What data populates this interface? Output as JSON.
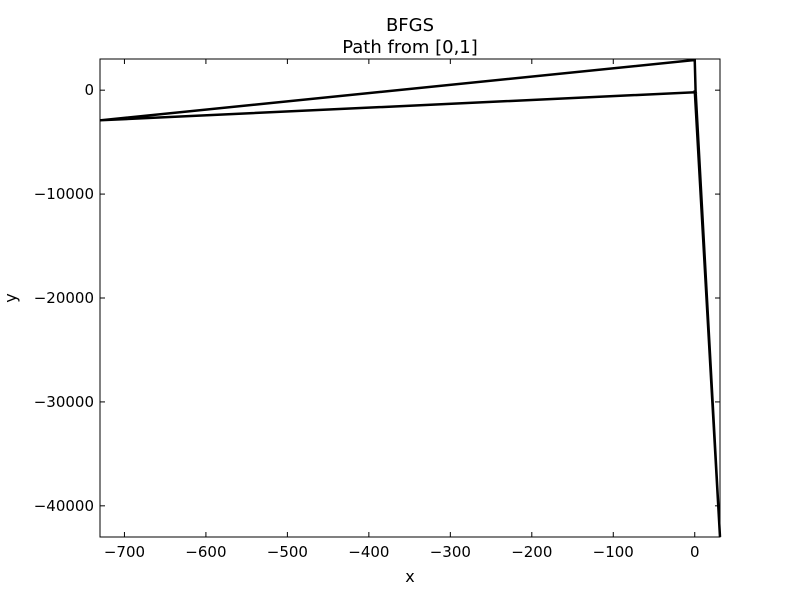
{
  "chart_data": {
    "type": "line",
    "title": "BFGS",
    "subtitle": "Path from [0,1]",
    "xlabel": "x",
    "ylabel": "y",
    "xlim": [
      -730,
      31
    ],
    "ylim": [
      -43000,
      3000
    ],
    "xticks": [
      -700,
      -600,
      -500,
      -400,
      -300,
      -200,
      -100,
      0
    ],
    "yticks": [
      -40000,
      -30000,
      -20000,
      -10000,
      0
    ],
    "xtick_labels": [
      "−700",
      "−600",
      "−500",
      "−400",
      "−300",
      "−200",
      "−100",
      "0"
    ],
    "ytick_labels": [
      "−40000",
      "−30000",
      "−20000",
      "−10000",
      "0"
    ],
    "grid": false,
    "colors": {
      "line": "#000000",
      "background": "#ffffff"
    },
    "series": [
      {
        "x": [
          0,
          1,
          -730,
          0,
          1,
          31,
          0
        ],
        "y": [
          1,
          -200,
          -2900,
          2900,
          0,
          -43000,
          1
        ]
      }
    ]
  }
}
